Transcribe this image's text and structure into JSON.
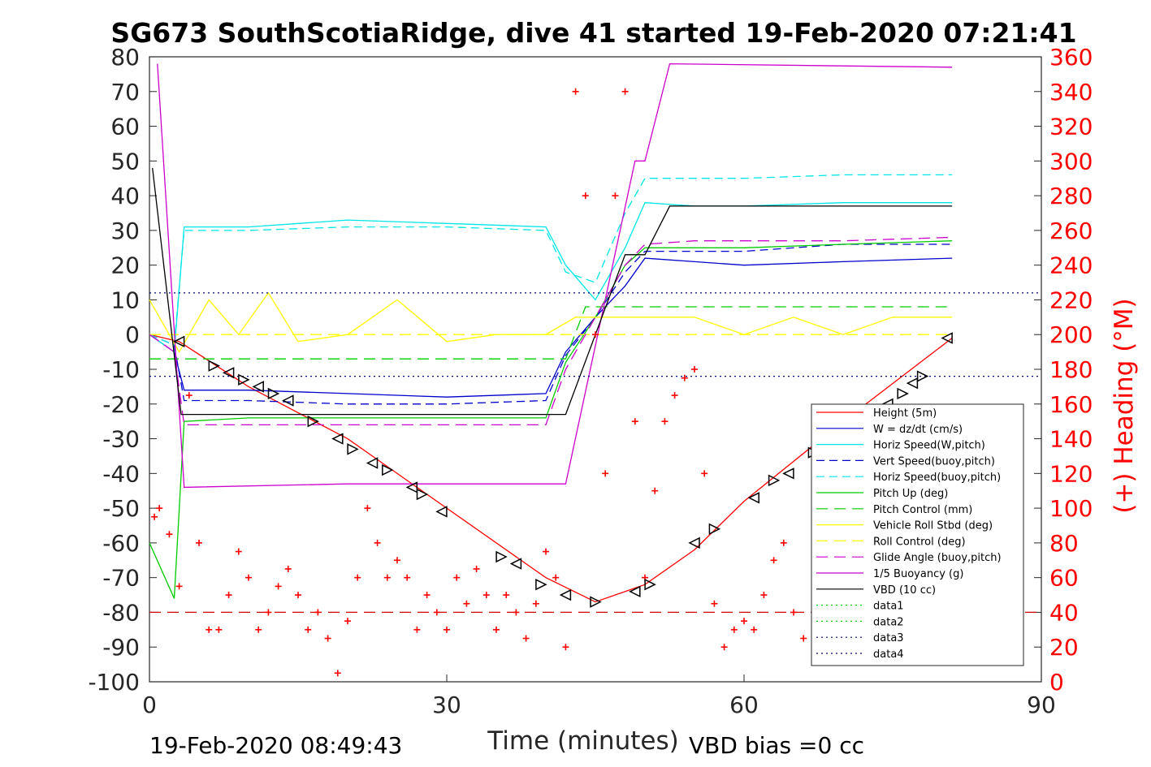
{
  "chart_data": {
    "type": "line",
    "title": "SG673 SouthScotiaRidge, dive 41 started 19-Feb-2020 07:21:41",
    "xlabel": "Time (minutes)",
    "ylabel": "",
    "y2label": "(+) Heading (°M)",
    "xlim": [
      0,
      90
    ],
    "ylim": [
      -100,
      80
    ],
    "y2lim": [
      0,
      360
    ],
    "xticks": [
      "0",
      "30",
      "60",
      "90"
    ],
    "yticks": [
      "80",
      "70",
      "60",
      "50",
      "40",
      "30",
      "20",
      "10",
      "0",
      "-10",
      "-20",
      "-30",
      "-40",
      "-50",
      "-60",
      "-70",
      "-80",
      "-90",
      "-100"
    ],
    "y2ticks": [
      "360",
      "340",
      "320",
      "300",
      "280",
      "260",
      "240",
      "220",
      "200",
      "180",
      "160",
      "140",
      "120",
      "100",
      "80",
      "60",
      "40",
      "20",
      "0"
    ],
    "legend_position": "lower-right",
    "grid": false,
    "footer_left": "19-Feb-2020 08:49:43",
    "footer_right": "VBD bias =0 cc",
    "colors": {
      "height": "#ff0000",
      "w": "#0000cc",
      "horiz": "#00e5e5",
      "pitch": "#00cc00",
      "roll": "#ffff00",
      "glide": "#cc00cc",
      "buoy": "#cc00cc",
      "vbd": "#000000",
      "heading": "#ff0000"
    },
    "series": [
      {
        "name": "Height (5m)",
        "color": "#ff0000",
        "dash": "",
        "x": [
          0,
          3,
          10,
          20,
          30,
          40,
          45,
          50,
          55,
          60,
          70,
          81
        ],
        "y": [
          0,
          -2,
          -15,
          -30,
          -50,
          -70,
          -77,
          -72,
          -62,
          -48,
          -25,
          -1
        ]
      },
      {
        "name": "W = dz/dt (cm/s)",
        "color": "#0000cc",
        "dash": "",
        "x": [
          0,
          2.5,
          3.5,
          10,
          20,
          30,
          40,
          42,
          45,
          48,
          50,
          55,
          60,
          70,
          81
        ],
        "y": [
          0,
          -5,
          -16,
          -16,
          -17,
          -18,
          -17,
          -5,
          5,
          14,
          22,
          21,
          20,
          21,
          22
        ]
      },
      {
        "name": "Horiz Speed(W,pitch)",
        "color": "#00e5e5",
        "dash": "",
        "x": [
          0,
          2.5,
          3.5,
          10,
          20,
          30,
          40,
          42,
          45,
          48,
          50,
          55,
          60,
          70,
          81
        ],
        "y": [
          0,
          -5,
          31,
          31,
          33,
          32,
          31,
          20,
          10,
          25,
          38,
          37,
          37,
          38,
          38
        ]
      },
      {
        "name": "Vert Speed(buoy,pitch)",
        "color": "#0000cc",
        "dash": "10 6",
        "x": [
          0,
          2.5,
          3.5,
          10,
          20,
          30,
          40,
          42,
          45,
          48,
          50,
          55,
          60,
          70,
          81
        ],
        "y": [
          0,
          -3,
          -19,
          -19,
          -20,
          -20,
          -19,
          -6,
          5,
          18,
          24,
          24,
          24,
          26,
          26
        ]
      },
      {
        "name": "Horiz Speed(buoy,pitch)",
        "color": "#00e5e5",
        "dash": "10 6",
        "x": [
          0,
          2.5,
          3.5,
          10,
          20,
          30,
          40,
          42,
          45,
          48,
          50,
          55,
          60,
          70,
          81
        ],
        "y": [
          0,
          -3,
          30,
          30,
          31,
          31,
          30,
          18,
          15,
          35,
          45,
          45,
          45,
          46,
          46
        ]
      },
      {
        "name": "Pitch Up (deg)",
        "color": "#00cc00",
        "dash": "",
        "x": [
          0,
          2.5,
          3.5,
          10,
          20,
          30,
          40,
          42,
          45,
          48,
          50,
          55,
          60,
          70,
          81
        ],
        "y": [
          -60,
          -76,
          -25,
          -24,
          -24,
          -24,
          -24,
          -8,
          5,
          20,
          25,
          25,
          25,
          26,
          27
        ]
      },
      {
        "name": "Pitch Control (mm)",
        "color": "#00cc00",
        "dash": "14 8",
        "x": [
          0,
          3,
          42,
          44,
          81
        ],
        "y": [
          -7,
          -7,
          -7,
          8,
          8
        ]
      },
      {
        "name": "Vehicle Roll Stbd (deg)",
        "color": "#ffff00",
        "dash": "",
        "x": [
          0,
          3,
          6,
          9,
          12,
          15,
          20,
          25,
          30,
          35,
          40,
          43,
          46,
          50,
          55,
          60,
          65,
          70,
          75,
          81
        ],
        "y": [
          10,
          -5,
          10,
          0,
          12,
          -2,
          0,
          10,
          -2,
          0,
          0,
          5,
          5,
          5,
          5,
          0,
          5,
          0,
          5,
          5
        ]
      },
      {
        "name": "Roll Control (deg)",
        "color": "#ffff00",
        "dash": "14 8",
        "x": [
          0,
          81
        ],
        "y": [
          0,
          0
        ]
      },
      {
        "name": "Glide Angle (buoy,pitch)",
        "color": "#cc00cc",
        "dash": "14 8",
        "x": [
          0,
          2.5,
          3.5,
          10,
          20,
          30,
          40,
          42,
          45,
          48,
          50,
          55,
          60,
          70,
          81
        ],
        "y": [
          0,
          -5,
          -26,
          -26,
          -26,
          -26,
          -26,
          -10,
          5,
          20,
          26,
          27,
          27,
          27,
          28
        ]
      },
      {
        "name": "1/5 Buoyancy (g)",
        "color": "#cc00cc",
        "dash": "",
        "x": [
          0.8,
          3.5,
          20,
          42,
          49,
          50,
          52.5,
          81
        ],
        "y": [
          78,
          -44,
          -43,
          -43,
          50,
          50,
          78,
          77
        ]
      },
      {
        "name": "VBD (10 cc)",
        "color": "#000000",
        "dash": "",
        "x": [
          0.3,
          3.2,
          42,
          48,
          50,
          52.5,
          81
        ],
        "y": [
          48,
          -23,
          -23,
          23,
          23,
          37,
          37
        ]
      },
      {
        "name": "data1",
        "color": "#00cc00",
        "dash": "2 4",
        "x": [],
        "y": []
      },
      {
        "name": "data2",
        "color": "#00cc00",
        "dash": "2 4",
        "x": [],
        "y": []
      },
      {
        "name": "data3",
        "color": "#000080",
        "dash": "2 4",
        "x": [
          0,
          90
        ],
        "y": [
          12,
          12
        ]
      },
      {
        "name": "data4",
        "color": "#000080",
        "dash": "2 4",
        "x": [
          0,
          90
        ],
        "y": [
          -12,
          -12
        ]
      }
    ],
    "extra_lines": [
      {
        "color": "#cc0000",
        "dash": "14 8",
        "x": [
          0,
          90
        ],
        "y": [
          -80,
          -80
        ]
      }
    ],
    "heading": {
      "x": [
        0.5,
        1,
        2,
        3,
        4,
        5,
        6,
        7,
        8,
        9,
        10,
        11,
        12,
        13,
        14,
        15,
        16,
        17,
        18,
        19,
        20,
        21,
        22,
        23,
        24,
        25,
        26,
        27,
        28,
        29,
        30,
        31,
        32,
        33,
        34,
        35,
        36,
        37,
        38,
        39,
        40,
        41,
        42,
        43,
        44,
        45,
        46,
        47,
        48,
        49,
        50,
        51,
        52,
        53,
        54,
        55,
        56,
        57,
        58,
        59,
        60,
        61,
        62,
        63,
        64,
        65,
        66
      ],
      "y": [
        95,
        100,
        85,
        55,
        165,
        80,
        30,
        30,
        50,
        75,
        60,
        30,
        40,
        55,
        65,
        50,
        30,
        40,
        25,
        5,
        35,
        60,
        100,
        80,
        60,
        70,
        60,
        30,
        50,
        40,
        30,
        60,
        45,
        65,
        50,
        30,
        50,
        40,
        25,
        45,
        75,
        60,
        20,
        340,
        280,
        200,
        120,
        280,
        340,
        150,
        60,
        110,
        150,
        165,
        175,
        180,
        120,
        45,
        20,
        30,
        35,
        30,
        50,
        70,
        80,
        40,
        25
      ]
    },
    "triangles": {
      "x": [
        3,
        6.5,
        8,
        9.5,
        11,
        12.5,
        14,
        16.5,
        19,
        20.5,
        22.5,
        24,
        26.5,
        27.5,
        29.5,
        35.5,
        37,
        39.5,
        42,
        45,
        49,
        50.5,
        55,
        57,
        61,
        63,
        64.5,
        67,
        69.5,
        72,
        74.5,
        76,
        77,
        78,
        80.5
      ],
      "y": [
        -2,
        -9,
        -11,
        -13,
        -15,
        -17,
        -19,
        -25,
        -30,
        -33,
        -37,
        -39,
        -44,
        -46,
        -51,
        -64,
        -66,
        -72,
        -75,
        -77,
        -74,
        -72,
        -60,
        -56,
        -47,
        -42,
        -40,
        -34,
        -31,
        -26,
        -20,
        -17,
        -14,
        -12,
        -1
      ]
    }
  }
}
